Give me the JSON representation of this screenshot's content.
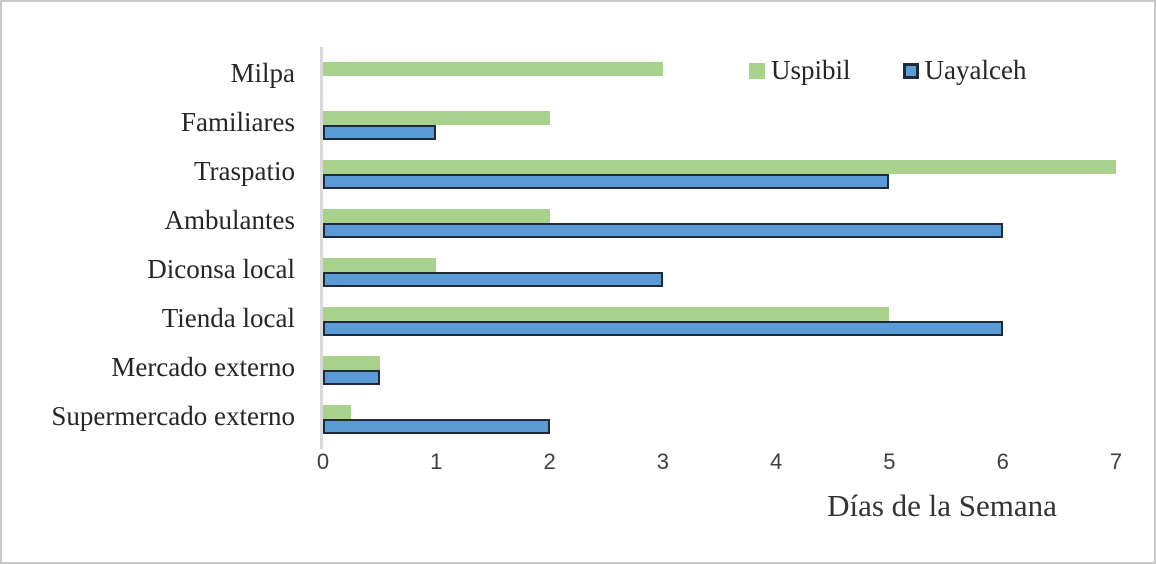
{
  "figure": {
    "background_color": "#ffffff",
    "frame_border_color": "#c8c8c8",
    "axis_line_color": "#d9d9d9",
    "text_color": "#262626"
  },
  "chart_data": {
    "type": "bar",
    "orientation": "horizontal",
    "title": "",
    "xlabel": "Días de la Semana",
    "ylabel": "",
    "xlim": [
      0,
      7
    ],
    "x_ticks": [
      "0",
      "1",
      "2",
      "3",
      "4",
      "5",
      "6",
      "7"
    ],
    "grid": false,
    "legend_position": "top-right-inside",
    "categories": [
      "Milpa",
      "Familiares",
      "Traspatio",
      "Ambulantes",
      "Diconsa local",
      "Tienda local",
      "Mercado externo",
      "Supermercado externo"
    ],
    "series": [
      {
        "name": "Uspibil",
        "color": "#A9D18E",
        "border_color": "#A9D18E",
        "values": [
          3,
          2,
          7,
          2,
          1,
          5,
          0.5,
          0.25
        ]
      },
      {
        "name": "Uayalceh",
        "color": "#5B9BD5",
        "border_color": "#1E2A38",
        "values": [
          0,
          1,
          5,
          6,
          3,
          6,
          0.5,
          2
        ]
      }
    ]
  }
}
